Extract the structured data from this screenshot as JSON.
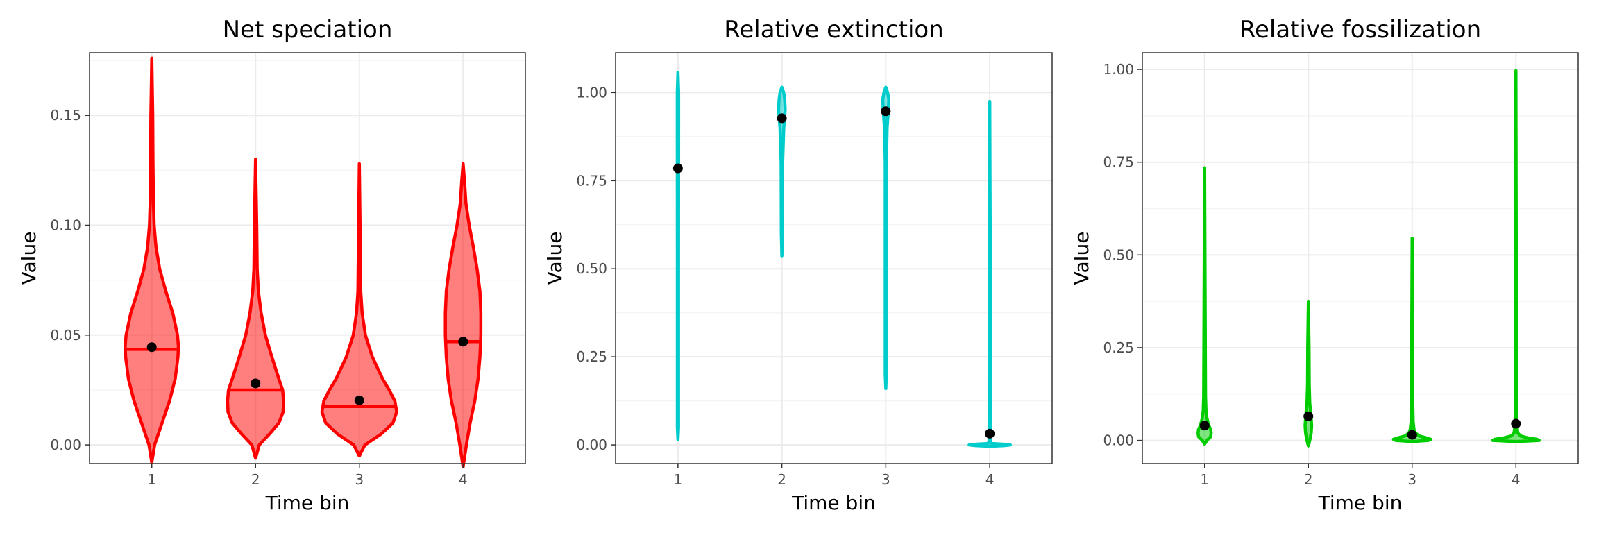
{
  "colors": {
    "red": "#ff0000",
    "cyan": "#00cccc",
    "green": "#00cc00",
    "mean_point": "#000000"
  },
  "chart_data": [
    {
      "type": "violin",
      "title": "Net speciation",
      "xlabel": "Time bin",
      "ylabel": "Value",
      "categories": [
        "1",
        "2",
        "3",
        "4"
      ],
      "ylim": [
        -0.0085,
        0.1785
      ],
      "yticks": [
        0.0,
        0.05,
        0.1,
        0.15
      ],
      "ytick_labels": [
        "0.00",
        "0.05",
        "0.10",
        "0.15"
      ],
      "color": "#ff0000",
      "fill_opacity": 0.5,
      "grid": true,
      "median_line": true,
      "violins": [
        {
          "category": "1",
          "mean": 0.0445,
          "median": 0.0435,
          "profile": [
            [
              -0.008,
              0
            ],
            [
              0,
              0.06
            ],
            [
              0.01,
              0.22
            ],
            [
              0.02,
              0.38
            ],
            [
              0.03,
              0.5
            ],
            [
              0.04,
              0.56
            ],
            [
              0.045,
              0.57
            ],
            [
              0.05,
              0.55
            ],
            [
              0.06,
              0.45
            ],
            [
              0.07,
              0.3
            ],
            [
              0.08,
              0.17
            ],
            [
              0.09,
              0.09
            ],
            [
              0.1,
              0.05
            ],
            [
              0.11,
              0.035
            ],
            [
              0.13,
              0.025
            ],
            [
              0.15,
              0.02
            ],
            [
              0.176,
              0
            ]
          ]
        },
        {
          "category": "2",
          "mean": 0.028,
          "median": 0.025,
          "profile": [
            [
              -0.006,
              0
            ],
            [
              0,
              0.08
            ],
            [
              0.005,
              0.3
            ],
            [
              0.01,
              0.5
            ],
            [
              0.015,
              0.59
            ],
            [
              0.02,
              0.6
            ],
            [
              0.025,
              0.58
            ],
            [
              0.03,
              0.5
            ],
            [
              0.04,
              0.35
            ],
            [
              0.05,
              0.21
            ],
            [
              0.06,
              0.12
            ],
            [
              0.07,
              0.06
            ],
            [
              0.08,
              0.035
            ],
            [
              0.1,
              0.025
            ],
            [
              0.13,
              0
            ]
          ]
        },
        {
          "category": "3",
          "mean": 0.0203,
          "median": 0.0175,
          "profile": [
            [
              -0.005,
              0
            ],
            [
              0,
              0.12
            ],
            [
              0.005,
              0.47
            ],
            [
              0.01,
              0.72
            ],
            [
              0.015,
              0.8
            ],
            [
              0.02,
              0.76
            ],
            [
              0.025,
              0.64
            ],
            [
              0.03,
              0.5
            ],
            [
              0.04,
              0.28
            ],
            [
              0.05,
              0.13
            ],
            [
              0.06,
              0.06
            ],
            [
              0.07,
              0.03
            ],
            [
              0.09,
              0.02
            ],
            [
              0.128,
              0
            ]
          ]
        },
        {
          "category": "4",
          "mean": 0.047,
          "median": 0.047,
          "profile": [
            [
              -0.01,
              0
            ],
            [
              0,
              0.07
            ],
            [
              0.01,
              0.15
            ],
            [
              0.02,
              0.25
            ],
            [
              0.03,
              0.32
            ],
            [
              0.04,
              0.36
            ],
            [
              0.05,
              0.38
            ],
            [
              0.06,
              0.38
            ],
            [
              0.07,
              0.36
            ],
            [
              0.08,
              0.3
            ],
            [
              0.09,
              0.22
            ],
            [
              0.1,
              0.13
            ],
            [
              0.11,
              0.06
            ],
            [
              0.12,
              0.03
            ],
            [
              0.128,
              0
            ]
          ]
        }
      ]
    },
    {
      "type": "violin",
      "title": "Relative extinction",
      "xlabel": "Time bin",
      "ylabel": "Value",
      "categories": [
        "1",
        "2",
        "3",
        "4"
      ],
      "ylim": [
        -0.053,
        1.113
      ],
      "yticks": [
        0.0,
        0.25,
        0.5,
        0.75,
        1.0
      ],
      "ytick_labels": [
        "0.00",
        "0.25",
        "0.50",
        "0.75",
        "1.00"
      ],
      "color": "#00cccc",
      "fill_opacity": 0.5,
      "grid": true,
      "median_line": false,
      "violins": [
        {
          "category": "1",
          "mean": 0.785,
          "profile": [
            [
              0.015,
              0
            ],
            [
              0.05,
              0.012
            ],
            [
              0.5,
              0.012
            ],
            [
              0.9,
              0.014
            ],
            [
              1.0,
              0.014
            ],
            [
              1.057,
              0
            ]
          ]
        },
        {
          "category": "2",
          "mean": 0.927,
          "profile": [
            [
              0.535,
              0
            ],
            [
              0.6,
              0.012
            ],
            [
              0.8,
              0.016
            ],
            [
              0.9,
              0.04
            ],
            [
              0.95,
              0.07
            ],
            [
              0.98,
              0.06
            ],
            [
              1.0,
              0.04
            ],
            [
              1.015,
              0
            ]
          ]
        },
        {
          "category": "3",
          "mean": 0.947,
          "profile": [
            [
              0.16,
              0
            ],
            [
              0.2,
              0.012
            ],
            [
              0.8,
              0.012
            ],
            [
              0.9,
              0.028
            ],
            [
              0.95,
              0.055
            ],
            [
              0.98,
              0.065
            ],
            [
              1.0,
              0.04
            ],
            [
              1.015,
              0
            ]
          ]
        },
        {
          "category": "4",
          "mean": 0.032,
          "profile": [
            [
              -0.004,
              0
            ],
            [
              -0.002,
              0.3
            ],
            [
              0,
              0.44
            ],
            [
              0.002,
              0.3
            ],
            [
              0.004,
              0.04
            ],
            [
              0.01,
              0.014
            ],
            [
              0.5,
              0.012
            ],
            [
              0.975,
              0
            ]
          ]
        }
      ]
    },
    {
      "type": "violin",
      "title": "Relative fossilization",
      "xlabel": "Time bin",
      "ylabel": "Value",
      "categories": [
        "1",
        "2",
        "3",
        "4"
      ],
      "ylim": [
        -0.0625,
        1.045
      ],
      "yticks": [
        0.0,
        0.25,
        0.5,
        0.75,
        1.0
      ],
      "ytick_labels": [
        "0.00",
        "0.25",
        "0.50",
        "0.75",
        "1.00"
      ],
      "color": "#00cc00",
      "fill_opacity": 0.5,
      "grid": true,
      "median_line": false,
      "violins": [
        {
          "category": "1",
          "mean": 0.04,
          "profile": [
            [
              -0.01,
              0
            ],
            [
              0,
              0.05
            ],
            [
              0.01,
              0.13
            ],
            [
              0.02,
              0.14
            ],
            [
              0.03,
              0.13
            ],
            [
              0.04,
              0.09
            ],
            [
              0.06,
              0.05
            ],
            [
              0.08,
              0.03
            ],
            [
              0.12,
              0.02
            ],
            [
              0.3,
              0.014
            ],
            [
              0.735,
              0
            ]
          ]
        },
        {
          "category": "2",
          "mean": 0.065,
          "profile": [
            [
              -0.015,
              0
            ],
            [
              0,
              0.03
            ],
            [
              0.02,
              0.06
            ],
            [
              0.04,
              0.07
            ],
            [
              0.06,
              0.06
            ],
            [
              0.08,
              0.045
            ],
            [
              0.1,
              0.03
            ],
            [
              0.15,
              0.018
            ],
            [
              0.25,
              0.014
            ],
            [
              0.375,
              0
            ]
          ]
        },
        {
          "category": "3",
          "mean": 0.015,
          "profile": [
            [
              -0.003,
              0
            ],
            [
              0,
              0.35
            ],
            [
              0.003,
              0.4
            ],
            [
              0.007,
              0.3
            ],
            [
              0.012,
              0.15
            ],
            [
              0.02,
              0.07
            ],
            [
              0.03,
              0.04
            ],
            [
              0.05,
              0.022
            ],
            [
              0.1,
              0.014
            ],
            [
              0.545,
              0
            ]
          ]
        },
        {
          "category": "4",
          "mean": 0.045,
          "profile": [
            [
              -0.003,
              0
            ],
            [
              0,
              0.5
            ],
            [
              0.003,
              0.45
            ],
            [
              0.007,
              0.25
            ],
            [
              0.012,
              0.1
            ],
            [
              0.02,
              0.04
            ],
            [
              0.04,
              0.02
            ],
            [
              0.08,
              0.014
            ],
            [
              0.997,
              0
            ]
          ]
        }
      ]
    }
  ]
}
